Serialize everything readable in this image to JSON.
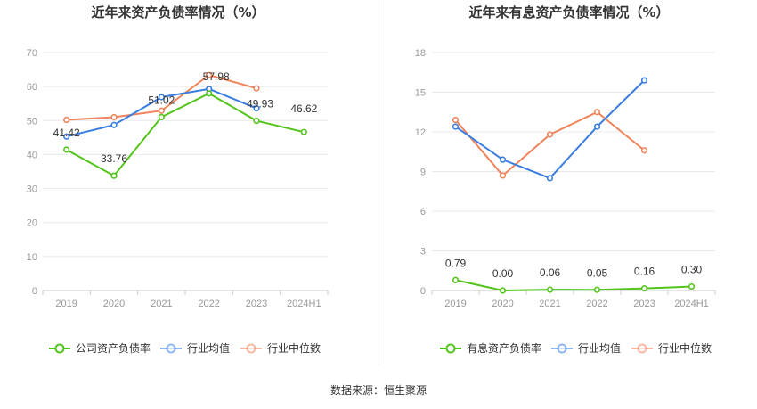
{
  "source_text": "数据来源：恒生聚源",
  "chart_data": [
    {
      "type": "line",
      "title": "近年来资产负债率情况（%）",
      "categories": [
        "2019",
        "2020",
        "2021",
        "2022",
        "2023",
        "2024H1"
      ],
      "yticks": [
        "0",
        "10",
        "20",
        "30",
        "40",
        "50",
        "60",
        "70"
      ],
      "ylim": [
        0,
        70
      ],
      "grid": true,
      "legend_position": "bottom",
      "series": [
        {
          "name": "公司资产负债率",
          "color": "#52c41a",
          "values": [
            41.42,
            33.76,
            51.02,
            57.98,
            49.93,
            46.62
          ],
          "labels": [
            "41.42",
            "33.76",
            "51.02",
            "57.98",
            "49.93",
            "46.62"
          ]
        },
        {
          "name": "行业均值",
          "color": "#3a7de0",
          "values": [
            45.3,
            48.7,
            56.9,
            59.3,
            53.6,
            null
          ],
          "labels": []
        },
        {
          "name": "行业中位数",
          "color": "#f0845c",
          "values": [
            50.2,
            51.0,
            52.9,
            63.4,
            59.5,
            null
          ],
          "labels": []
        }
      ]
    },
    {
      "type": "line",
      "title": "近年来有息资产负债率情况（%）",
      "categories": [
        "2019",
        "2020",
        "2021",
        "2022",
        "2023",
        "2024H1"
      ],
      "yticks": [
        "0",
        "3",
        "6",
        "9",
        "12",
        "15",
        "18"
      ],
      "ylim": [
        0,
        18
      ],
      "grid": true,
      "legend_position": "bottom",
      "series": [
        {
          "name": "有息资产负债率",
          "color": "#52c41a",
          "values": [
            0.79,
            0.0,
            0.06,
            0.05,
            0.16,
            0.3
          ],
          "labels": [
            "0.79",
            "0.00",
            "0.06",
            "0.05",
            "0.16",
            "0.30"
          ]
        },
        {
          "name": "行业均值",
          "color": "#3a7de0",
          "values": [
            12.4,
            9.9,
            8.5,
            12.4,
            15.9,
            null
          ],
          "labels": []
        },
        {
          "name": "行业中位数",
          "color": "#f0845c",
          "values": [
            12.9,
            8.7,
            11.8,
            13.5,
            10.6,
            null
          ],
          "labels": []
        }
      ]
    }
  ]
}
